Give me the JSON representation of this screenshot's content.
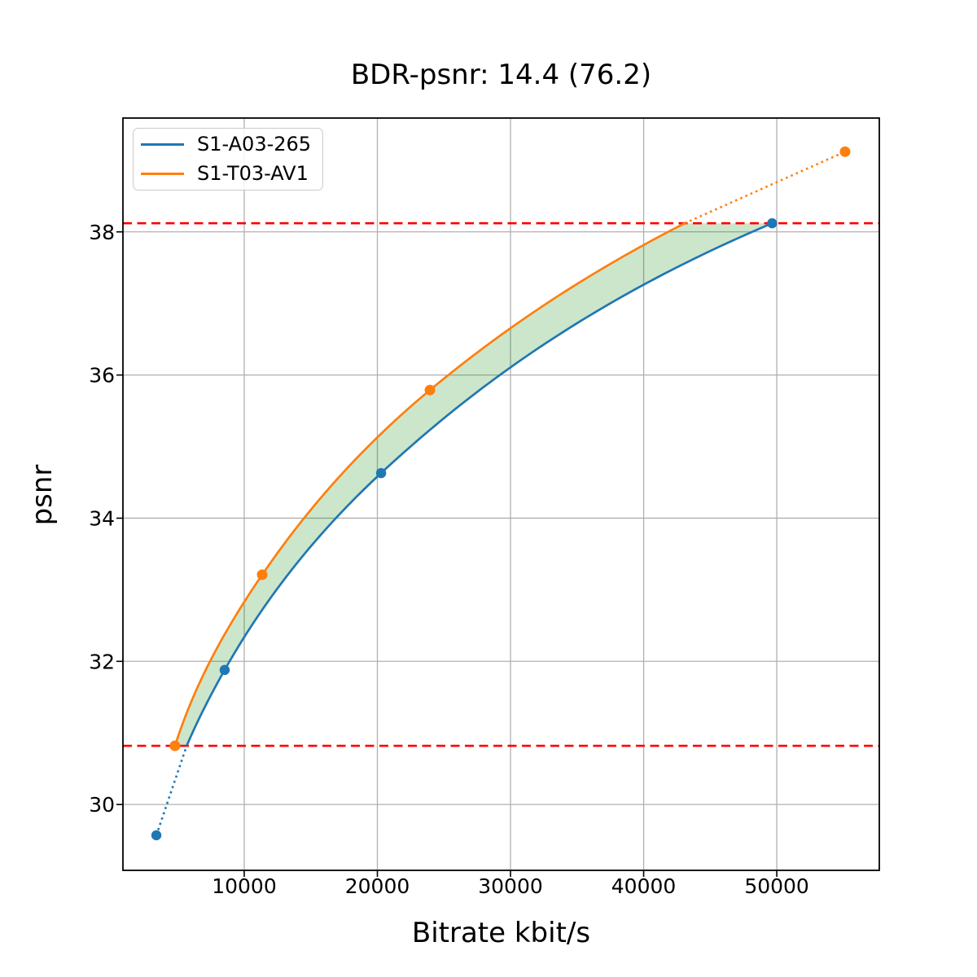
{
  "chart_data": {
    "type": "line",
    "title": "BDR-psnr: 14.4 (76.2)",
    "xlabel": "Bitrate kbit/s",
    "ylabel": "psnr",
    "xlim": [
      890,
      57700
    ],
    "ylim": [
      29.08,
      39.59
    ],
    "grid": true,
    "x_ticks": {
      "values": [
        10000,
        20000,
        30000,
        40000,
        50000
      ],
      "labels": [
        "10000",
        "20000",
        "30000",
        "40000",
        "50000"
      ]
    },
    "y_ticks": {
      "values": [
        30,
        32,
        34,
        36,
        38
      ],
      "labels": [
        "30",
        "32",
        "34",
        "36",
        "38"
      ]
    },
    "legend": {
      "position": "upper left"
    },
    "series": [
      {
        "name": "S1-A03-265",
        "color": "#1f77b4",
        "points": [
          [
            3400,
            29.57
          ],
          [
            8530,
            31.88
          ],
          [
            20280,
            34.63
          ],
          [
            49650,
            38.12
          ]
        ]
      },
      {
        "name": "S1-T03-AV1",
        "color": "#ff7f0e",
        "points": [
          [
            4800,
            30.82
          ],
          [
            11350,
            33.21
          ],
          [
            23950,
            35.79
          ],
          [
            55130,
            39.12
          ]
        ]
      }
    ],
    "overlap_range": [
      30.82,
      38.12
    ],
    "overlap_line_color": "#ff0000",
    "overlap_line_style": "dashed",
    "fill_between": {
      "color": "#008000",
      "opacity": 0.2
    },
    "gridline_color": "#b0b0b0",
    "note_solid_span": "solid curves drawn over overlap psnr range, dotted extensions to outer points"
  }
}
